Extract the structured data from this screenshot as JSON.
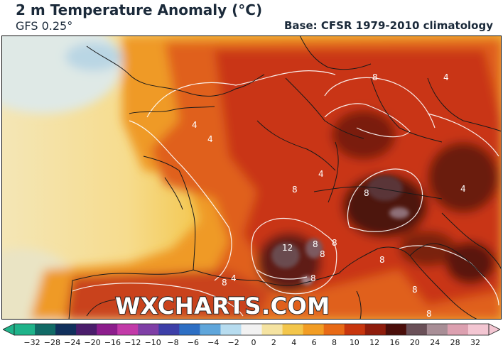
{
  "header": {
    "title": "2 m Temperature Anomaly (°C)",
    "model": "GFS 0.25°",
    "base": "Base: CFSR 1979-2010 climatology"
  },
  "watermark": "WXCHARTS.COM",
  "map": {
    "region": "Western Europe (France, Spain, Italy, Germany, Alps)",
    "contour_labels": [
      "4",
      "4",
      "4",
      "4",
      "4",
      "4",
      "8",
      "8",
      "8",
      "8",
      "8",
      "8",
      "8",
      "8",
      "8",
      "8",
      "8",
      "12"
    ]
  },
  "colorbar": {
    "ticks": [
      "−32",
      "−28",
      "−24",
      "−20",
      "−16",
      "−12",
      "−10",
      "−8",
      "−6",
      "−4",
      "−2",
      "0",
      "2",
      "4",
      "6",
      "8",
      "10",
      "12",
      "16",
      "20",
      "24",
      "28",
      "32"
    ],
    "colors": [
      "#1fb38a",
      "#116a66",
      "#11305c",
      "#4a1d6b",
      "#8c1d8c",
      "#c23aa8",
      "#7f3fa6",
      "#3d3fa8",
      "#2d6fc4",
      "#5fa6db",
      "#b7dcef",
      "#f2f2f2",
      "#f5e3a1",
      "#f3c64b",
      "#f29d24",
      "#e86a16",
      "#c8360e",
      "#8f1d0c",
      "#4a0e0a",
      "#6a5058",
      "#a88e96",
      "#dca0b0",
      "#f3c6d2"
    ]
  },
  "colors": {
    "title": "#1b2a3a",
    "sea_cool": "#f5e7b0",
    "land_warm": "#d8480f",
    "hot_core": "#5a1410"
  }
}
